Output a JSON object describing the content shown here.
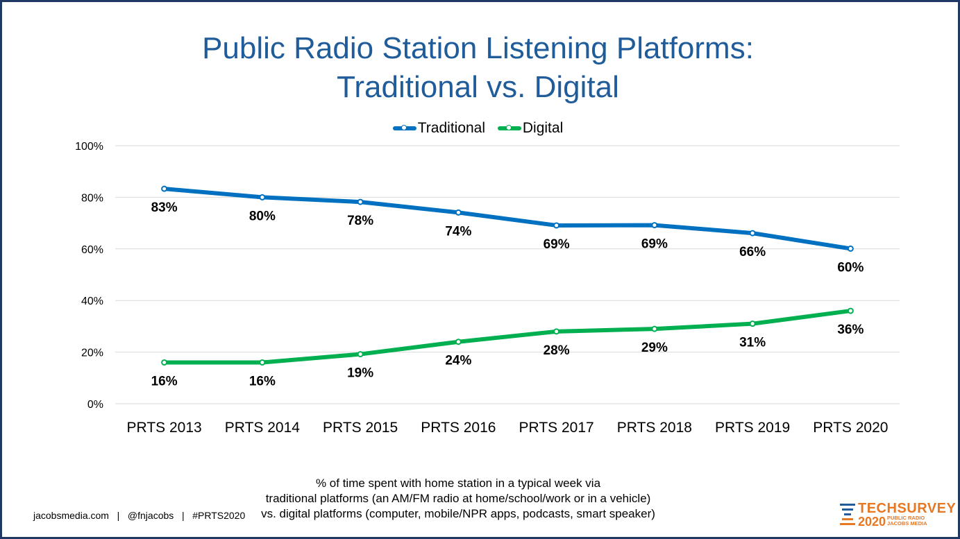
{
  "title_line1": "Public Radio Station Listening Platforms:",
  "title_line2": "Traditional vs. Digital",
  "colors": {
    "traditional": "#0070c0",
    "digital": "#00b050",
    "title": "#1f5c99",
    "logo": "#e87722"
  },
  "chart_data": {
    "type": "line",
    "categories": [
      "PRTS 2013",
      "PRTS 2014",
      "PRTS 2015",
      "PRTS 2016",
      "PRTS 2017",
      "PRTS 2018",
      "PRTS 2019",
      "PRTS 2020"
    ],
    "series": [
      {
        "name": "Traditional",
        "values": [
          83.3,
          80,
          78.2,
          74.1,
          69.1,
          69.2,
          66.1,
          60.1
        ],
        "labels": [
          "83%",
          "80%",
          "78%",
          "74%",
          "69%",
          "69%",
          "66%",
          "60%"
        ]
      },
      {
        "name": "Digital",
        "values": [
          16,
          16,
          19.2,
          24,
          28,
          29,
          31,
          36
        ],
        "labels": [
          "16%",
          "16%",
          "19%",
          "24%",
          "28%",
          "29%",
          "31%",
          "36%"
        ]
      }
    ],
    "ylim": [
      0,
      100
    ],
    "yticks": [
      0,
      20,
      40,
      60,
      80,
      100
    ],
    "ytick_labels": [
      "0%",
      "20%",
      "40%",
      "60%",
      "80%",
      "100%"
    ],
    "legend_position": "top",
    "grid": true
  },
  "note": {
    "line1": "% of time spent with home station in a typical week via",
    "line2": "traditional platforms (an AM/FM radio at home/school/work or in a vehicle)",
    "line3": "vs. digital platforms (computer, mobile/NPR apps, podcasts, smart speaker)"
  },
  "footer": "jacobsmedia.com   |   @fnjacobs   |   #PRTS2020",
  "logo": {
    "name": "TECHSURVEY",
    "year": "2020",
    "sub1": "PUBLIC RADIO",
    "sub2": "JACOBS MEDIA"
  }
}
